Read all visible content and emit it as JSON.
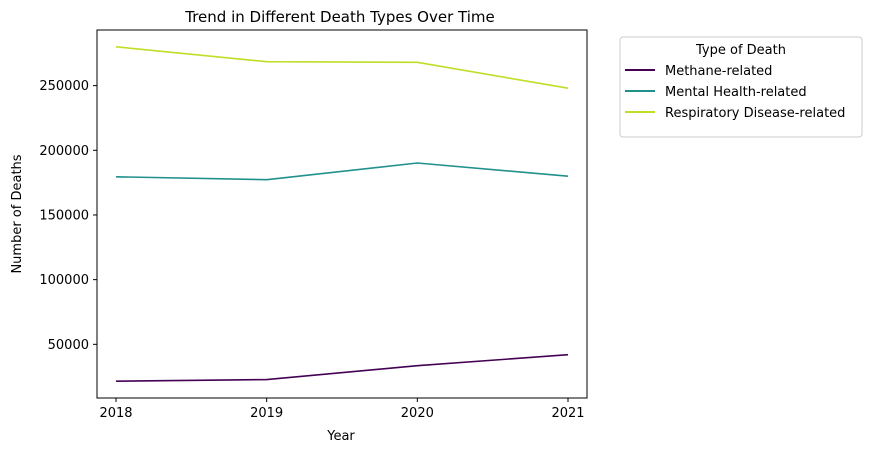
{
  "chart_data": {
    "type": "line",
    "title": "Trend in Different Death Types Over Time",
    "xlabel": "Year",
    "ylabel": "Number of Deaths",
    "x": [
      "2018",
      "2019",
      "2020",
      "2021"
    ],
    "series": [
      {
        "name": "Methane-related",
        "color": "#440154",
        "values": [
          21500,
          22700,
          33500,
          42000
        ]
      },
      {
        "name": "Mental Health-related",
        "color": "#21918c",
        "values": [
          179500,
          177300,
          190200,
          180000
        ]
      },
      {
        "name": "Respiratory Disease-related",
        "color": "#bddf26",
        "values": [
          280000,
          268500,
          268000,
          248000
        ]
      }
    ],
    "yticks": [
      50000,
      100000,
      150000,
      200000,
      250000
    ],
    "ylim": [
      8500,
      293000
    ],
    "grid": false,
    "legend": {
      "title": "Type of Death",
      "placement": "outside-right"
    }
  }
}
